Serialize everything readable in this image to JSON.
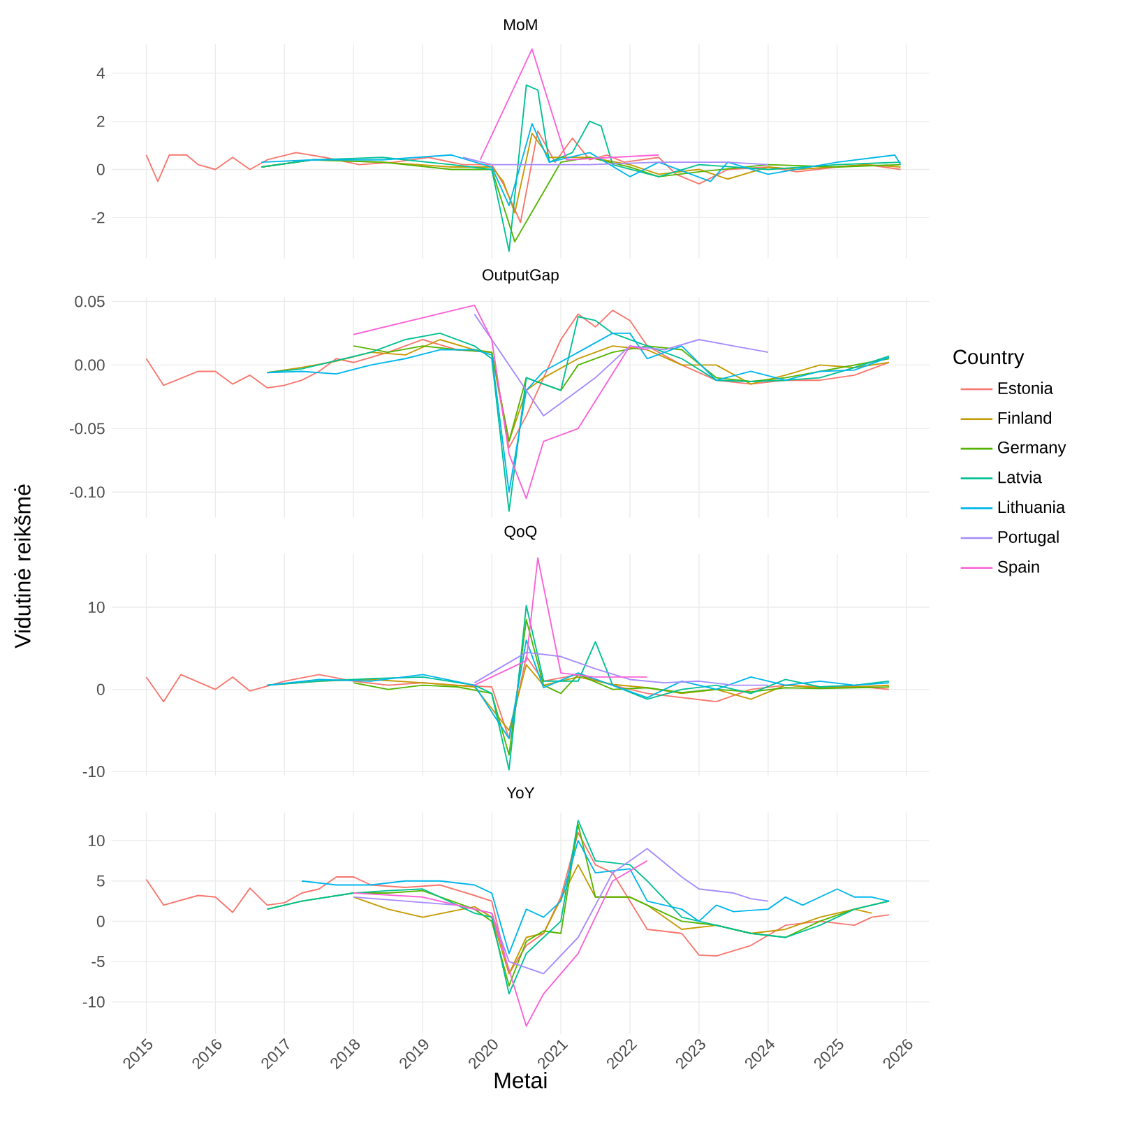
{
  "chart_data": [
    {
      "type": "line",
      "title": "MoM",
      "tick_labels": "y",
      "grid": true,
      "xlim": [
        "2014-07",
        "2026-05"
      ],
      "xticks": [
        "2015",
        "2016",
        "2017",
        "2018",
        "2019",
        "2020",
        "2021",
        "2022",
        "2023",
        "2024",
        "2025",
        "2026"
      ],
      "ylim": [
        -3.7,
        5.2
      ],
      "yticks": [
        -2,
        0,
        2,
        4
      ],
      "series": [
        {
          "color": "#F8766D",
          "x": [
            "2015-01",
            "2015-03",
            "2015-05",
            "2015-08",
            "2015-10",
            "2016-01",
            "2016-04",
            "2016-07",
            "2016-10",
            "2017-03",
            "2017-08",
            "2018-02",
            "2018-08",
            "2019-02",
            "2019-08",
            "2020-01",
            "2020-03",
            "2020-06",
            "2020-09",
            "2020-12",
            "2021-03",
            "2021-06",
            "2021-09",
            "2021-12",
            "2022-06",
            "2022-09",
            "2023-01",
            "2023-06",
            "2024-01",
            "2024-06",
            "2025-01",
            "2025-06",
            "2025-12"
          ],
          "values": [
            0.6,
            -0.5,
            0.6,
            0.6,
            0.2,
            0,
            0.5,
            0,
            0.4,
            0.7,
            0.5,
            0.2,
            0.3,
            0.5,
            0.2,
            0.2,
            -0.6,
            -2.2,
            1.6,
            0.3,
            1.3,
            0.4,
            0.6,
            0.3,
            0.5,
            -0.2,
            -0.6,
            0,
            0.1,
            -0.1,
            0.1,
            0.2,
            0
          ]
        },
        {
          "color": "#C49A00",
          "x": [
            "2016-09",
            "2017-06",
            "2018-06",
            "2019-06",
            "2020-01",
            "2020-03",
            "2020-05",
            "2020-08",
            "2020-11",
            "2021-06",
            "2022-01",
            "2022-06",
            "2023-01",
            "2023-06",
            "2024-01",
            "2024-06",
            "2025-06",
            "2025-12"
          ],
          "values": [
            0.1,
            0.4,
            0.3,
            0.1,
            0.1,
            -0.5,
            -1.8,
            1.5,
            0.5,
            0.5,
            0.2,
            -0.2,
            0,
            -0.4,
            0.1,
            0,
            0.2,
            0.1
          ]
        },
        {
          "color": "#53B400",
          "x": [
            "2016-09",
            "2017-06",
            "2018-06",
            "2019-06",
            "2020-01",
            "2020-05",
            "2021-01",
            "2021-06",
            "2022-01",
            "2022-06",
            "2023-01",
            "2024-01",
            "2025-01",
            "2025-12"
          ],
          "values": [
            0.1,
            0.4,
            0.3,
            0,
            0,
            -3.0,
            0.3,
            0.5,
            0.1,
            -0.3,
            -0.1,
            0.2,
            0.1,
            0.2
          ]
        },
        {
          "color": "#00C094",
          "x": [
            "2016-09",
            "2017-06",
            "2018-06",
            "2019-06",
            "2020-01",
            "2020-04",
            "2020-07",
            "2020-09",
            "2020-11",
            "2021-03",
            "2021-06",
            "2021-08",
            "2021-10",
            "2022-06",
            "2023-01",
            "2024-01",
            "2025-01",
            "2025-12"
          ],
          "values": [
            0.1,
            0.4,
            0.5,
            0.2,
            0,
            -3.4,
            3.5,
            3.3,
            0.3,
            0.7,
            2,
            1.8,
            0.2,
            -0.3,
            0.2,
            0,
            0.2,
            0.3
          ]
        },
        {
          "color": "#00B6EB",
          "x": [
            "2016-09",
            "2017-06",
            "2018-06",
            "2019-06",
            "2020-01",
            "2020-04",
            "2020-08",
            "2020-11",
            "2021-06",
            "2022-01",
            "2022-06",
            "2023-03",
            "2023-06",
            "2024-01",
            "2025-01",
            "2025-11",
            "2025-12"
          ],
          "values": [
            0.3,
            0.4,
            0.4,
            0.6,
            0.1,
            -1.5,
            1.9,
            0.3,
            0.7,
            -0.3,
            0.3,
            -0.5,
            0.3,
            -0.2,
            0.3,
            0.6,
            0.2
          ]
        },
        {
          "color": "#A58AFF",
          "x": [
            "2019-08",
            "2020-01",
            "2021-06",
            "2022-06",
            "2023-06",
            "2024-01"
          ],
          "values": [
            0.5,
            0.2,
            0.2,
            0.3,
            0.3,
            0.2
          ]
        },
        {
          "color": "#FB61D7",
          "x": [
            "2019-11",
            "2020-08",
            "2021-02",
            "2022-06"
          ],
          "values": [
            0.4,
            5.0,
            0.4,
            0.6
          ]
        }
      ]
    },
    {
      "type": "line",
      "title": "OutputGap",
      "tick_labels": "y",
      "grid": true,
      "legend": "right",
      "legend_title": "Country",
      "ylabel": "Vidutinė reikšmė",
      "xlim": [
        "2014-07",
        "2026-05"
      ],
      "xticks": [
        "2015",
        "2016",
        "2017",
        "2018",
        "2019",
        "2020",
        "2021",
        "2022",
        "2023",
        "2024",
        "2025",
        "2026"
      ],
      "ylim": [
        -0.12,
        0.053
      ],
      "yticks": [
        {
          "value": -0.1,
          "label": "-0.10"
        },
        {
          "value": -0.05,
          "label": "-0.05"
        },
        {
          "value": 0,
          "label": "0.00"
        },
        {
          "value": 0.05,
          "label": "0.05"
        }
      ],
      "series": [
        {
          "name": "Estonia",
          "color": "#F8766D",
          "x": [
            "2015-01",
            "2015-04",
            "2015-10",
            "2016-01",
            "2016-04",
            "2016-07",
            "2016-10",
            "2017-01",
            "2017-04",
            "2017-07",
            "2017-10",
            "2018-01",
            "2018-07",
            "2019-01",
            "2019-07",
            "2020-01",
            "2020-04",
            "2020-07",
            "2020-10",
            "2021-01",
            "2021-04",
            "2021-07",
            "2021-10",
            "2022-01",
            "2022-04",
            "2022-10",
            "2023-04",
            "2023-10",
            "2024-04",
            "2024-10",
            "2025-04",
            "2025-10"
          ],
          "values": [
            0.005,
            -0.016,
            -0.005,
            -0.005,
            -0.015,
            -0.008,
            -0.018,
            -0.016,
            -0.012,
            -0.005,
            0.005,
            0.002,
            0.01,
            0.02,
            0.012,
            0.01,
            -0.065,
            -0.04,
            -0.01,
            0.02,
            0.04,
            0.03,
            0.043,
            0.035,
            0.015,
            0.0,
            -0.012,
            -0.015,
            -0.012,
            -0.012,
            -0.008,
            0.002
          ]
        },
        {
          "name": "Finland",
          "color": "#C49A00",
          "x": [
            "2016-10",
            "2017-04",
            "2017-10",
            "2018-04",
            "2018-10",
            "2019-04",
            "2019-10",
            "2020-01",
            "2020-04",
            "2020-07",
            "2020-10",
            "2021-04",
            "2021-10",
            "2022-04",
            "2022-10",
            "2023-04",
            "2023-10",
            "2024-04",
            "2024-10",
            "2025-04",
            "2025-10"
          ],
          "values": [
            -0.006,
            -0.002,
            0.003,
            0.01,
            0.008,
            0.02,
            0.012,
            0.01,
            -0.06,
            -0.02,
            -0.01,
            0.005,
            0.015,
            0.012,
            0.0,
            0.0,
            -0.015,
            -0.008,
            0.0,
            -0.002,
            0.002
          ]
        },
        {
          "name": "Germany",
          "color": "#53B400",
          "x": [
            "2018-01",
            "2018-07",
            "2019-01",
            "2019-07",
            "2020-01",
            "2020-04",
            "2020-07",
            "2021-01",
            "2021-04",
            "2021-10",
            "2022-04",
            "2022-10",
            "2023-04",
            "2023-10",
            "2024-04",
            "2024-10",
            "2025-04",
            "2025-10"
          ],
          "values": [
            0.015,
            0.01,
            0.015,
            0.012,
            0.01,
            -0.06,
            -0.01,
            -0.02,
            0.0,
            0.01,
            0.015,
            0.012,
            -0.01,
            -0.013,
            -0.01,
            -0.005,
            0.0,
            0.005
          ]
        },
        {
          "name": "Latvia",
          "color": "#00C094",
          "x": [
            "2016-10",
            "2017-04",
            "2018-04",
            "2018-10",
            "2019-04",
            "2019-10",
            "2020-01",
            "2020-04",
            "2020-07",
            "2020-10",
            "2021-01",
            "2021-04",
            "2021-07",
            "2021-10",
            "2022-04",
            "2022-10",
            "2023-04",
            "2023-10",
            "2024-04",
            "2024-10",
            "2025-04",
            "2025-10"
          ],
          "values": [
            -0.006,
            -0.003,
            0.01,
            0.02,
            0.025,
            0.015,
            0.005,
            -0.115,
            -0.01,
            -0.015,
            -0.02,
            0.038,
            0.035,
            0.025,
            0.015,
            0.005,
            -0.012,
            -0.013,
            -0.012,
            -0.01,
            -0.002,
            0.007
          ]
        },
        {
          "name": "Lithuania",
          "color": "#00B6EB",
          "x": [
            "2016-10",
            "2017-04",
            "2017-10",
            "2018-04",
            "2018-10",
            "2019-04",
            "2019-10",
            "2020-01",
            "2020-04",
            "2020-07",
            "2020-10",
            "2021-04",
            "2021-10",
            "2022-01",
            "2022-04",
            "2022-10",
            "2023-04",
            "2023-10",
            "2024-04",
            "2024-10",
            "2025-04",
            "2025-10"
          ],
          "values": [
            -0.006,
            -0.005,
            -0.007,
            0.0,
            0.005,
            0.012,
            0.012,
            0.008,
            -0.1,
            -0.02,
            -0.005,
            0.01,
            0.025,
            0.025,
            0.005,
            0.015,
            -0.012,
            -0.005,
            -0.012,
            -0.005,
            -0.004,
            0.006
          ]
        },
        {
          "name": "Portugal",
          "color": "#A58AFF",
          "x": [
            "2019-10",
            "2020-01",
            "2020-07",
            "2020-10",
            "2021-01",
            "2021-07",
            "2022-01",
            "2022-07",
            "2023-01",
            "2023-07",
            "2024-01"
          ],
          "values": [
            0.04,
            0.02,
            -0.02,
            -0.04,
            -0.03,
            -0.01,
            0.015,
            0.012,
            0.02,
            0.015,
            0.01
          ]
        },
        {
          "name": "Spain",
          "color": "#FB61D7",
          "x": [
            "2018-01",
            "2019-10",
            "2020-01",
            "2020-04",
            "2020-07",
            "2020-10",
            "2021-04",
            "2022-01",
            "2022-04"
          ],
          "values": [
            0.024,
            0.047,
            0.02,
            -0.07,
            -0.105,
            -0.06,
            -0.05,
            0.015,
            0.012
          ]
        }
      ]
    },
    {
      "type": "line",
      "title": "QoQ",
      "tick_labels": "y",
      "grid": true,
      "xlim": [
        "2014-07",
        "2026-05"
      ],
      "xticks": [
        "2015",
        "2016",
        "2017",
        "2018",
        "2019",
        "2020",
        "2021",
        "2022",
        "2023",
        "2024",
        "2025",
        "2026"
      ],
      "ylim": [
        -10.5,
        16.5
      ],
      "yticks": [
        -10,
        0,
        10
      ],
      "series": [
        {
          "color": "#F8766D",
          "x": [
            "2015-01",
            "2015-04",
            "2015-07",
            "2016-01",
            "2016-04",
            "2016-07",
            "2017-01",
            "2017-07",
            "2018-01",
            "2018-07",
            "2019-01",
            "2019-07",
            "2020-01",
            "2020-04",
            "2020-07",
            "2020-10",
            "2021-04",
            "2021-10",
            "2022-04",
            "2022-10",
            "2023-04",
            "2023-10",
            "2024-04",
            "2024-10",
            "2025-04",
            "2025-10"
          ],
          "values": [
            1.5,
            -1.5,
            1.8,
            0,
            1.5,
            -0.2,
            1.0,
            1.8,
            1.0,
            0.5,
            0.8,
            0.5,
            0.3,
            -6,
            4,
            1,
            1.8,
            0.5,
            -0.5,
            -1,
            -1.5,
            0,
            0.5,
            0.3,
            0.4,
            0.0
          ]
        },
        {
          "color": "#C49A00",
          "x": [
            "2016-10",
            "2017-07",
            "2018-04",
            "2019-01",
            "2019-10",
            "2020-04",
            "2020-07",
            "2020-10",
            "2021-04",
            "2021-10",
            "2022-04",
            "2022-10",
            "2023-04",
            "2023-10",
            "2024-04",
            "2024-10",
            "2025-04",
            "2025-10"
          ],
          "values": [
            0.5,
            1,
            1.2,
            0.8,
            0.3,
            -5,
            3,
            0.5,
            1.5,
            0.6,
            0.2,
            -0.5,
            0,
            -1.2,
            0.5,
            0.2,
            0.3,
            0.5
          ]
        },
        {
          "color": "#53B400",
          "x": [
            "2018-01",
            "2018-07",
            "2019-01",
            "2019-07",
            "2020-01",
            "2020-04",
            "2020-07",
            "2020-10",
            "2021-01",
            "2021-04",
            "2021-10",
            "2022-04",
            "2022-10",
            "2023-04",
            "2023-10",
            "2024-04",
            "2024-10",
            "2025-04",
            "2025-10"
          ],
          "values": [
            0.8,
            0,
            0.5,
            0.3,
            -0.5,
            -8,
            8.5,
            0.5,
            -0.5,
            1.8,
            0,
            0.2,
            -0.4,
            0,
            -0.3,
            0.2,
            0.1,
            0.2,
            0.3
          ]
        },
        {
          "color": "#00C094",
          "x": [
            "2016-10",
            "2017-07",
            "2018-04",
            "2019-01",
            "2019-10",
            "2020-01",
            "2020-04",
            "2020-07",
            "2020-10",
            "2021-04",
            "2021-07",
            "2021-10",
            "2022-04",
            "2022-10",
            "2023-04",
            "2023-10",
            "2024-04",
            "2024-10",
            "2025-04",
            "2025-10"
          ],
          "values": [
            0.5,
            1,
            1.3,
            1.5,
            0.5,
            -0.5,
            -9.8,
            10.2,
            1,
            1,
            5.8,
            0.5,
            -1.2,
            0,
            0.5,
            -0.5,
            1.2,
            0.3,
            0.5,
            1.0
          ]
        },
        {
          "color": "#00B6EB",
          "x": [
            "2016-10",
            "2017-07",
            "2018-04",
            "2019-01",
            "2019-10",
            "2020-04",
            "2020-07",
            "2020-10",
            "2021-04",
            "2021-10",
            "2022-04",
            "2022-10",
            "2023-04",
            "2023-10",
            "2024-04",
            "2024-10",
            "2025-04",
            "2025-10"
          ],
          "values": [
            0.5,
            1.2,
            1,
            1.8,
            0.5,
            -6,
            6,
            0.2,
            2,
            0.5,
            -1,
            1,
            0,
            1.5,
            0.5,
            1,
            0.5,
            0.8
          ]
        },
        {
          "color": "#A58AFF",
          "x": [
            "2019-10",
            "2020-07",
            "2021-01",
            "2021-07",
            "2022-01",
            "2022-07",
            "2023-01",
            "2023-07",
            "2024-01"
          ],
          "values": [
            0.8,
            4.5,
            4,
            2.5,
            1.2,
            0.8,
            1.0,
            0.5,
            0.5
          ]
        },
        {
          "color": "#FB61D7",
          "x": [
            "2019-10",
            "2020-07",
            "2020-09",
            "2021-01",
            "2021-07",
            "2022-04"
          ],
          "values": [
            0.5,
            3.5,
            16,
            2,
            1.5,
            1.5
          ]
        }
      ]
    },
    {
      "type": "line",
      "title": "YoY",
      "xlabel": "Metai",
      "grid": true,
      "xlim": [
        "2014-07",
        "2026-05"
      ],
      "xticks": [
        "2015",
        "2016",
        "2017",
        "2018",
        "2019",
        "2020",
        "2021",
        "2022",
        "2023",
        "2024",
        "2025",
        "2026"
      ],
      "ylim": [
        -14,
        13.5
      ],
      "yticks": [
        -10,
        -5,
        0,
        5,
        10
      ],
      "series": [
        {
          "color": "#F8766D",
          "x": [
            "2015-01",
            "2015-04",
            "2015-10",
            "2016-01",
            "2016-04",
            "2016-07",
            "2016-10",
            "2017-01",
            "2017-04",
            "2017-07",
            "2017-10",
            "2018-01",
            "2018-04",
            "2018-10",
            "2019-04",
            "2019-10",
            "2020-01",
            "2020-04",
            "2020-07",
            "2020-10",
            "2021-01",
            "2021-04",
            "2021-07",
            "2021-10",
            "2022-04",
            "2022-10",
            "2023-01",
            "2023-04",
            "2023-10",
            "2024-04",
            "2024-10",
            "2025-04",
            "2025-07",
            "2025-10"
          ],
          "values": [
            5.2,
            2,
            3.2,
            3,
            1.1,
            4.1,
            2,
            2.3,
            3.5,
            4,
            5.5,
            5.5,
            4.5,
            4.2,
            4.5,
            3.2,
            2.5,
            -6.5,
            -3,
            -1.5,
            3,
            11,
            7,
            6,
            -1,
            -1.5,
            -4.2,
            -4.3,
            -3,
            -0.5,
            0,
            -0.5,
            0.5,
            0.8
          ]
        },
        {
          "color": "#C49A00",
          "x": [
            "2018-01",
            "2018-07",
            "2019-01",
            "2019-10",
            "2020-01",
            "2020-04",
            "2020-07",
            "2020-10",
            "2021-04",
            "2021-07",
            "2022-01",
            "2022-04",
            "2022-10",
            "2023-04",
            "2023-10",
            "2024-04",
            "2024-10",
            "2025-04",
            "2025-07"
          ],
          "values": [
            3,
            1.5,
            0.5,
            1.8,
            0.5,
            -6.5,
            -2,
            -1.5,
            7,
            3,
            3,
            2,
            -1,
            -0.5,
            -1.5,
            -1,
            0.5,
            1.5,
            1
          ]
        },
        {
          "color": "#53B400",
          "x": [
            "2016-10",
            "2017-04",
            "2018-01",
            "2018-07",
            "2019-01",
            "2019-10",
            "2020-01",
            "2020-04",
            "2020-07",
            "2020-10",
            "2021-01",
            "2021-04",
            "2021-07",
            "2022-01",
            "2022-04",
            "2022-10",
            "2023-04",
            "2023-10",
            "2024-04",
            "2024-10",
            "2025-04",
            "2025-10"
          ],
          "values": [
            1.5,
            2.5,
            3.5,
            3.5,
            3.8,
            1.5,
            0,
            -8,
            -2.5,
            -1.2,
            -1.5,
            12,
            3,
            3,
            2,
            0,
            -0.5,
            -1.5,
            -2,
            0,
            1.5,
            2.5
          ]
        },
        {
          "color": "#00C094",
          "x": [
            "2016-10",
            "2017-04",
            "2018-01",
            "2018-07",
            "2019-01",
            "2019-10",
            "2020-01",
            "2020-04",
            "2020-07",
            "2020-10",
            "2021-01",
            "2021-04",
            "2021-07",
            "2022-01",
            "2022-04",
            "2022-10",
            "2023-04",
            "2023-10",
            "2024-04",
            "2024-10",
            "2025-04",
            "2025-10"
          ],
          "values": [
            1.5,
            2.5,
            3.5,
            3.8,
            4,
            1,
            0.5,
            -9,
            -4,
            -2,
            0,
            12.5,
            7.5,
            7,
            5,
            0.5,
            -0.5,
            -1.5,
            -2,
            -0.5,
            1.5,
            2.5
          ]
        },
        {
          "color": "#00B6EB",
          "x": [
            "2017-04",
            "2017-10",
            "2018-04",
            "2018-10",
            "2019-04",
            "2019-10",
            "2020-01",
            "2020-04",
            "2020-07",
            "2020-10",
            "2021-01",
            "2021-04",
            "2021-07",
            "2022-01",
            "2022-04",
            "2022-10",
            "2023-01",
            "2023-04",
            "2023-07",
            "2024-01",
            "2024-04",
            "2024-07",
            "2025-01",
            "2025-04",
            "2025-07",
            "2025-10"
          ],
          "values": [
            5,
            4.5,
            4.5,
            5,
            5,
            4.5,
            3.5,
            -4,
            1.5,
            0.5,
            2.5,
            10,
            6,
            6.5,
            2.5,
            1.5,
            0,
            2,
            1.2,
            1.5,
            3,
            2,
            4,
            3,
            3,
            2.5
          ]
        },
        {
          "color": "#A58AFF",
          "x": [
            "2018-01",
            "2018-10",
            "2019-07",
            "2020-01",
            "2020-04",
            "2020-10",
            "2021-04",
            "2021-10",
            "2022-04",
            "2022-10",
            "2023-01",
            "2023-07",
            "2023-10",
            "2024-01"
          ],
          "values": [
            3,
            2.5,
            2,
            1,
            -5,
            -6.5,
            -2,
            6,
            9,
            5.5,
            4,
            3.5,
            2.8,
            2.5
          ]
        },
        {
          "color": "#FB61D7",
          "x": [
            "2018-01",
            "2019-01",
            "2019-10",
            "2020-01",
            "2020-04",
            "2020-07",
            "2020-10",
            "2021-04",
            "2021-10",
            "2022-04"
          ],
          "values": [
            3.5,
            3,
            1.5,
            1,
            -6,
            -13,
            -9,
            -4,
            5,
            7.5
          ]
        }
      ]
    }
  ]
}
